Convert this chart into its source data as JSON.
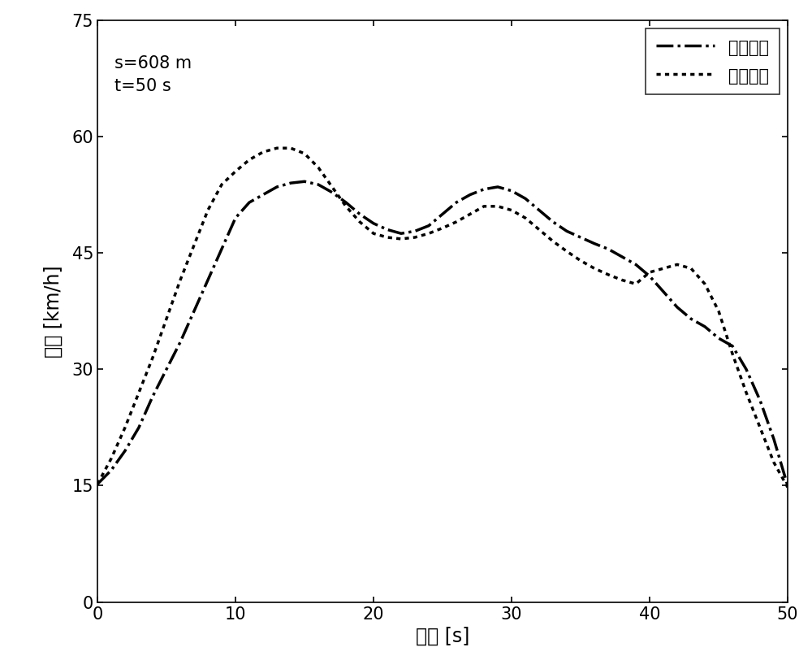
{
  "title_annotation": "s=608 m\nt=50 s",
  "xlabel": "时间 [s]",
  "ylabel": "车速 [km/h]",
  "xlim": [
    0,
    50
  ],
  "ylim": [
    0,
    75
  ],
  "xticks": [
    0,
    10,
    20,
    30,
    40,
    50
  ],
  "yticks": [
    0,
    15,
    30,
    45,
    60,
    75
  ],
  "legend_labels": [
    "自由驾驶",
    "节能驾驶"
  ],
  "line_color": "#000000",
  "free_drive_x": [
    0,
    1,
    2,
    3,
    4,
    5,
    6,
    7,
    8,
    9,
    10,
    11,
    12,
    13,
    14,
    15,
    16,
    17,
    18,
    19,
    20,
    21,
    22,
    23,
    24,
    25,
    26,
    27,
    28,
    29,
    30,
    31,
    32,
    33,
    34,
    35,
    36,
    37,
    38,
    39,
    40,
    41,
    42,
    43,
    44,
    45,
    46,
    47,
    48,
    49,
    50
  ],
  "free_drive_y": [
    15.2,
    17.0,
    19.5,
    22.5,
    26.5,
    30.0,
    33.5,
    37.5,
    41.5,
    45.5,
    49.5,
    51.5,
    52.5,
    53.5,
    54.0,
    54.2,
    53.8,
    52.8,
    51.5,
    50.0,
    48.8,
    48.0,
    47.5,
    47.8,
    48.5,
    50.0,
    51.5,
    52.5,
    53.2,
    53.5,
    53.0,
    52.0,
    50.5,
    49.0,
    47.8,
    47.0,
    46.2,
    45.5,
    44.5,
    43.5,
    42.0,
    40.0,
    38.0,
    36.5,
    35.5,
    34.0,
    33.0,
    30.0,
    26.0,
    21.0,
    15.0
  ],
  "eco_drive_x": [
    0,
    1,
    2,
    3,
    4,
    5,
    6,
    7,
    8,
    9,
    10,
    11,
    12,
    13,
    14,
    15,
    16,
    17,
    18,
    19,
    20,
    21,
    22,
    23,
    24,
    25,
    26,
    27,
    28,
    29,
    30,
    31,
    32,
    33,
    34,
    35,
    36,
    37,
    38,
    39,
    40,
    41,
    42,
    43,
    44,
    45,
    46,
    47,
    48,
    49,
    50
  ],
  "eco_drive_y": [
    15.2,
    18.5,
    22.5,
    27.0,
    31.5,
    36.5,
    41.5,
    46.0,
    50.5,
    53.8,
    55.5,
    57.0,
    58.0,
    58.5,
    58.5,
    57.8,
    56.0,
    53.5,
    51.0,
    49.0,
    47.5,
    47.0,
    46.8,
    47.0,
    47.5,
    48.2,
    49.0,
    50.0,
    51.0,
    51.0,
    50.5,
    49.5,
    48.0,
    46.5,
    45.2,
    44.0,
    43.0,
    42.2,
    41.5,
    41.0,
    42.5,
    43.0,
    43.5,
    43.0,
    41.0,
    37.5,
    32.0,
    27.0,
    22.5,
    18.0,
    14.8
  ],
  "background_color": "#ffffff",
  "font_size_label": 17,
  "font_size_tick": 15,
  "font_size_annotation": 15,
  "font_size_legend": 15,
  "linewidth_free": 2.5,
  "linewidth_eco": 2.5
}
